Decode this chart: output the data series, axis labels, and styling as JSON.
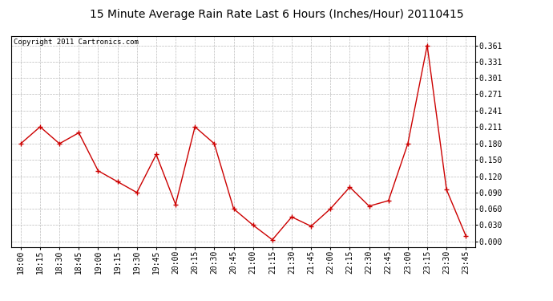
{
  "title": "15 Minute Average Rain Rate Last 6 Hours (Inches/Hour) 20110415",
  "copyright": "Copyright 2011 Cartronics.com",
  "x_labels": [
    "18:00",
    "18:15",
    "18:30",
    "18:45",
    "19:00",
    "19:15",
    "19:30",
    "19:45",
    "20:00",
    "20:15",
    "20:30",
    "20:45",
    "21:00",
    "21:15",
    "21:30",
    "21:45",
    "22:00",
    "22:15",
    "22:30",
    "22:45",
    "23:00",
    "23:15",
    "23:30",
    "23:45"
  ],
  "y_values": [
    0.18,
    0.211,
    0.18,
    0.2,
    0.13,
    0.11,
    0.09,
    0.16,
    0.068,
    0.211,
    0.18,
    0.06,
    0.03,
    0.003,
    0.045,
    0.028,
    0.06,
    0.1,
    0.065,
    0.075,
    0.18,
    0.361,
    0.095,
    0.01
  ],
  "y_ticks": [
    0.0,
    0.03,
    0.06,
    0.09,
    0.12,
    0.15,
    0.18,
    0.211,
    0.241,
    0.271,
    0.301,
    0.331,
    0.361
  ],
  "line_color": "#cc0000",
  "marker_color": "#cc0000",
  "bg_color": "#ffffff",
  "grid_color": "#bbbbbb",
  "title_fontsize": 10,
  "copyright_fontsize": 6.5,
  "tick_fontsize": 7,
  "ylim_min": -0.01,
  "ylim_max": 0.378
}
